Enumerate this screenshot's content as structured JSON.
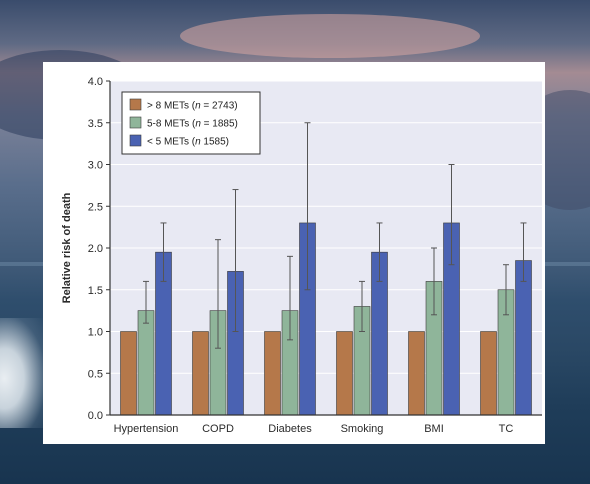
{
  "colors": {
    "series": [
      "#b5784a",
      "#8fb59a",
      "#4a62b2"
    ],
    "plot_background": "#e8e9f3",
    "bar_edge": "#3b3b3b",
    "error_bar": "#555555"
  },
  "chart_data": {
    "type": "bar",
    "title": "",
    "xlabel": "",
    "ylabel": "Relative risk of death",
    "ylim": [
      0,
      4.0
    ],
    "yticks": [
      "0.0",
      "0.5",
      "1.0",
      "1.5",
      "2.0",
      "2.5",
      "3.0",
      "3.5",
      "4.0"
    ],
    "grid": true,
    "legend_position": "top-left",
    "error_bars": true,
    "categories": [
      "Hypertension",
      "COPD",
      "Diabetes",
      "Smoking",
      "BMI",
      "TC"
    ],
    "series": [
      {
        "name_parts": [
          "> 8 METs (",
          "n",
          " = 2743)"
        ],
        "values": [
          1.0,
          1.0,
          1.0,
          1.0,
          1.0,
          1.0
        ],
        "error_low": [
          1.0,
          1.0,
          1.0,
          1.0,
          1.0,
          1.0
        ],
        "error_high": [
          1.0,
          1.0,
          1.0,
          1.0,
          1.0,
          1.0
        ]
      },
      {
        "name_parts": [
          "5-8 METs (",
          "n",
          " = 1885)"
        ],
        "values": [
          1.25,
          1.25,
          1.25,
          1.3,
          1.6,
          1.5
        ],
        "error_low": [
          1.1,
          0.8,
          0.9,
          1.0,
          1.2,
          1.2
        ],
        "error_high": [
          1.6,
          2.1,
          1.9,
          1.6,
          2.0,
          1.8
        ]
      },
      {
        "name_parts": [
          "< 5 METs (",
          "n",
          " 1585)"
        ],
        "values": [
          1.95,
          1.72,
          2.3,
          1.95,
          2.3,
          1.85
        ],
        "error_low": [
          1.6,
          1.0,
          1.5,
          1.6,
          1.8,
          1.6
        ],
        "error_high": [
          2.3,
          2.7,
          3.5,
          2.3,
          3.0,
          2.3
        ]
      }
    ]
  }
}
